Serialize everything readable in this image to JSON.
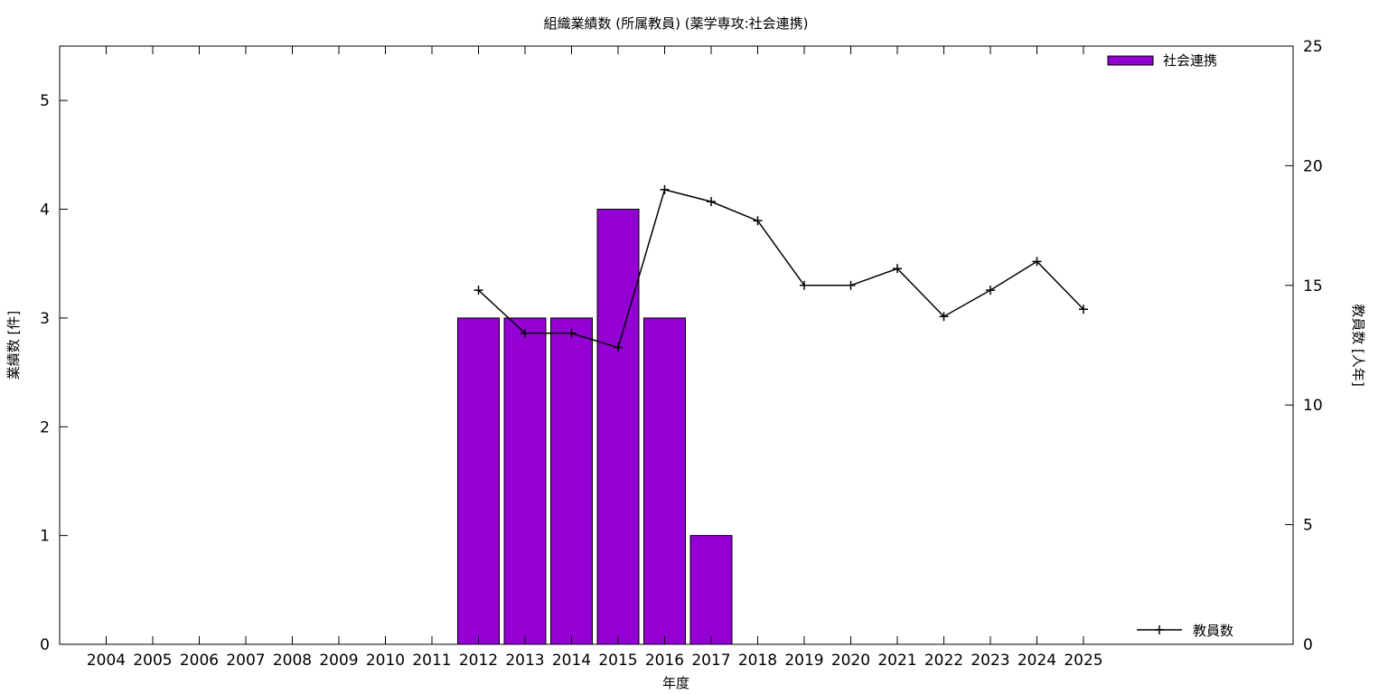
{
  "chart_data": {
    "type": "bar",
    "title": "組織業績数 (所属教員) (薬学専攻:社会連携)",
    "xlabel": "年度",
    "ylabel": "業績数 [件]",
    "y2label": "教員数 [人年]",
    "categories": [
      "2004",
      "2005",
      "2006",
      "2007",
      "2008",
      "2009",
      "2010",
      "2011",
      "2012",
      "2013",
      "2014",
      "2015",
      "2016",
      "2017",
      "2018",
      "2019",
      "2020",
      "2021",
      "2022",
      "2023",
      "2024",
      "2025"
    ],
    "ylim": [
      0,
      5.5
    ],
    "yticks": [
      "0",
      "1",
      "2",
      "3",
      "4",
      "5"
    ],
    "y2lim": [
      0,
      25
    ],
    "y2ticks": [
      "0",
      "5",
      "10",
      "15",
      "20",
      "25"
    ],
    "grid": false,
    "series": [
      {
        "name": "社会連携",
        "type": "bar",
        "axis": "left",
        "color": "#9400d3",
        "legend_position": "top-right",
        "values": [
          0,
          0,
          0,
          0,
          0,
          0,
          0,
          0,
          3,
          3,
          3,
          4,
          3,
          1,
          0,
          0,
          0,
          0,
          0,
          0,
          0,
          0
        ]
      },
      {
        "name": "教員数",
        "type": "line",
        "axis": "right",
        "color": "#000000",
        "marker": "plus",
        "legend_position": "bottom-right",
        "x": [
          "2012",
          "2013",
          "2014",
          "2015",
          "2016",
          "2017",
          "2018",
          "2019",
          "2020",
          "2021",
          "2022",
          "2023",
          "2024",
          "2025"
        ],
        "values": [
          14.8,
          13.0,
          13.0,
          12.4,
          19.0,
          18.5,
          17.7,
          15.0,
          15.0,
          15.7,
          13.7,
          14.8,
          16.0,
          14.0
        ]
      }
    ]
  }
}
